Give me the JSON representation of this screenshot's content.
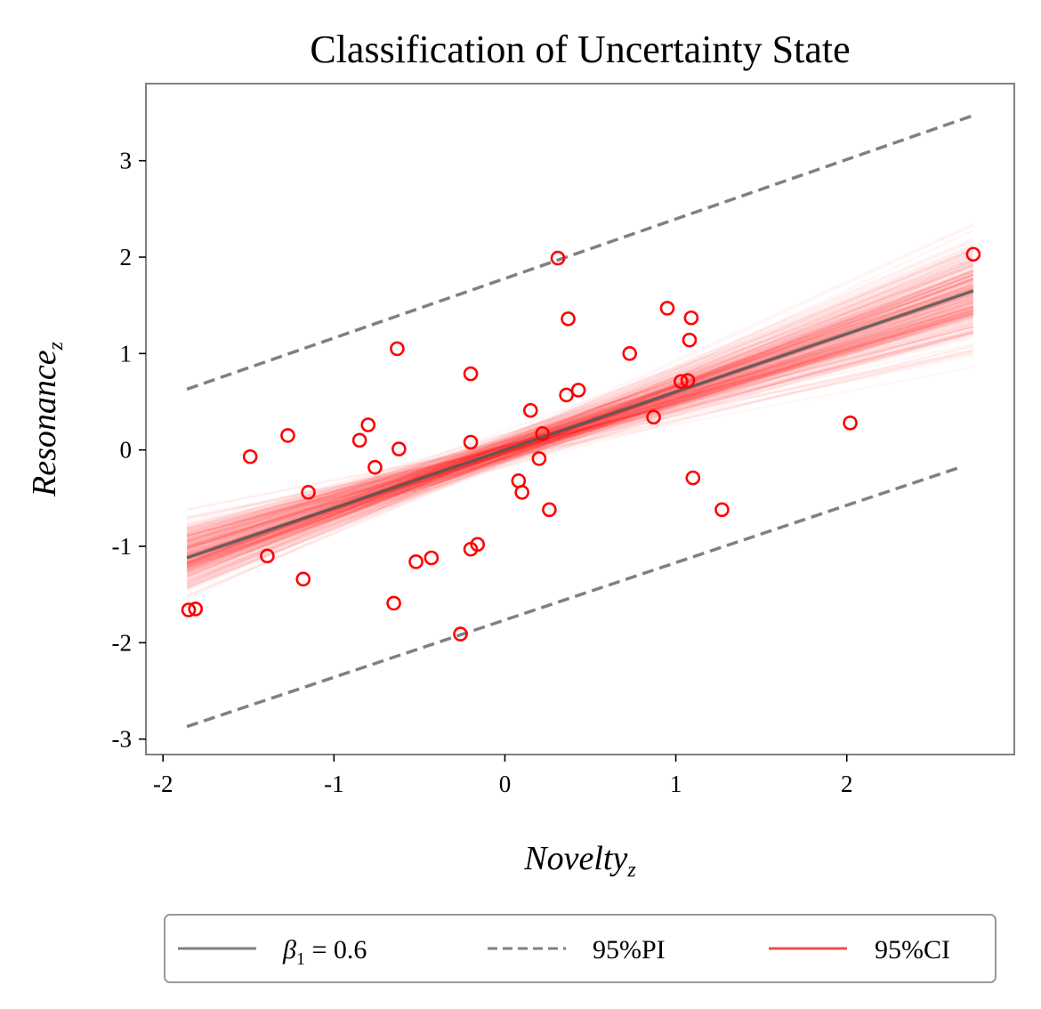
{
  "chart_data": {
    "type": "scatter",
    "title": "Classification of Uncertainty State",
    "xlabel": "Novelty",
    "xlabel_sub": "z",
    "ylabel": "Resonance",
    "ylabel_sub": "z",
    "xlim": [
      -2.1,
      2.98
    ],
    "ylim": [
      -3.16,
      3.8
    ],
    "xticks": [
      -2,
      -1,
      0,
      1,
      2
    ],
    "yticks": [
      -3,
      -2,
      -1,
      0,
      1,
      2,
      3
    ],
    "xtick_labels": [
      "-2",
      "-1",
      "0",
      "1",
      "2"
    ],
    "ytick_labels": [
      "-3",
      "-2",
      "-1",
      "0",
      "1",
      "2",
      "3"
    ],
    "grid": false,
    "fit_line": {
      "x": [
        -1.86,
        2.74
      ],
      "y": [
        -1.12,
        1.65
      ],
      "color": "#555555"
    },
    "pi_lower": {
      "x": [
        -1.86,
        2.68
      ],
      "y": [
        -2.87,
        -0.17
      ]
    },
    "pi_upper": {
      "x": [
        -1.86,
        2.74
      ],
      "y": [
        0.63,
        3.47
      ]
    },
    "ci": {
      "x_min": -1.86,
      "x_max": 2.74,
      "center_intercept": 0.0,
      "center_slope": 0.6,
      "color": "#ff0000"
    },
    "points": [
      {
        "x": -1.85,
        "y": -1.66
      },
      {
        "x": -1.81,
        "y": -1.65
      },
      {
        "x": -1.49,
        "y": -0.07
      },
      {
        "x": -1.39,
        "y": -1.1
      },
      {
        "x": -1.27,
        "y": 0.15
      },
      {
        "x": -1.18,
        "y": -1.34
      },
      {
        "x": -1.15,
        "y": -0.44
      },
      {
        "x": -0.85,
        "y": 0.1
      },
      {
        "x": -0.8,
        "y": 0.26
      },
      {
        "x": -0.76,
        "y": -0.18
      },
      {
        "x": -0.65,
        "y": -1.59
      },
      {
        "x": -0.63,
        "y": 1.05
      },
      {
        "x": -0.62,
        "y": 0.01
      },
      {
        "x": -0.52,
        "y": -1.16
      },
      {
        "x": -0.43,
        "y": -1.12
      },
      {
        "x": -0.26,
        "y": -1.91
      },
      {
        "x": -0.2,
        "y": 0.79
      },
      {
        "x": -0.2,
        "y": 0.08
      },
      {
        "x": -0.2,
        "y": -1.03
      },
      {
        "x": -0.16,
        "y": -0.98
      },
      {
        "x": 0.08,
        "y": -0.32
      },
      {
        "x": 0.1,
        "y": -0.44
      },
      {
        "x": 0.15,
        "y": 0.41
      },
      {
        "x": 0.2,
        "y": -0.09
      },
      {
        "x": 0.22,
        "y": 0.17
      },
      {
        "x": 0.26,
        "y": -0.62
      },
      {
        "x": 0.31,
        "y": 1.99
      },
      {
        "x": 0.36,
        "y": 0.57
      },
      {
        "x": 0.37,
        "y": 1.36
      },
      {
        "x": 0.43,
        "y": 0.62
      },
      {
        "x": 0.73,
        "y": 1.0
      },
      {
        "x": 0.87,
        "y": 0.34
      },
      {
        "x": 0.95,
        "y": 1.47
      },
      {
        "x": 1.03,
        "y": 0.71
      },
      {
        "x": 1.07,
        "y": 0.72
      },
      {
        "x": 1.08,
        "y": 1.14
      },
      {
        "x": 1.09,
        "y": 1.37
      },
      {
        "x": 1.1,
        "y": -0.29
      },
      {
        "x": 1.27,
        "y": -0.62
      },
      {
        "x": 2.02,
        "y": 0.28
      },
      {
        "x": 2.74,
        "y": 2.03
      }
    ],
    "point_color": "#ff0000",
    "legend": {
      "placement": "below",
      "entries": [
        {
          "label_prefix": "β",
          "label_sub": "1",
          "label_suffix": " = 0.6",
          "style": "solid",
          "color": "#808080"
        },
        {
          "label": "95%PI",
          "style": "dashed",
          "color": "#808080"
        },
        {
          "label": "95%CI",
          "style": "solid",
          "color": "#e8504f"
        }
      ]
    }
  }
}
